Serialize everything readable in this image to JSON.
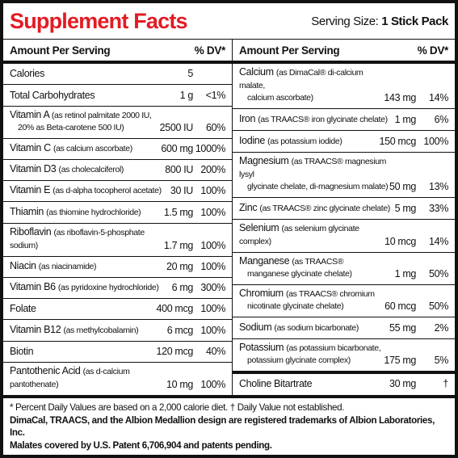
{
  "header": {
    "title": "Supplement Facts",
    "serving_size_label": "Serving Size:",
    "serving_size_value": "1 Stick Pack"
  },
  "columns": {
    "left": {
      "amount_header": "Amount Per Serving",
      "dv_header": "% DV*",
      "rows": [
        {
          "name": "Calories",
          "amount": "5"
        },
        {
          "name": "Total Carbohydrates",
          "amount": "1 g",
          "dv": "<1%"
        },
        {
          "name": "Vitamin A",
          "detail": [
            "(as retinol palmitate 2000 IU,",
            "20% as Beta-carotene 500 IU)"
          ],
          "amount": "2500 IU",
          "dv": "60%"
        },
        {
          "name": "Vitamin C",
          "detail": [
            "(as calcium ascorbate)"
          ],
          "amount": "600 mg",
          "dv": "1000%"
        },
        {
          "name": "Vitamin D3",
          "detail": [
            "(as cholecalciferol)"
          ],
          "amount": "800 IU",
          "dv": "200%"
        },
        {
          "name": "Vitamin E",
          "detail": [
            "(as d-alpha tocopherol acetate)"
          ],
          "amount": "30 IU",
          "dv": "100%"
        },
        {
          "name": "Thiamin",
          "detail": [
            "(as thiomine hydrochloride)"
          ],
          "amount": "1.5 mg",
          "dv": "100%"
        },
        {
          "name": "Riboflavin",
          "detail": [
            "(as riboflavin-5-phosphate sodium)"
          ],
          "amount": "1.7 mg",
          "dv": "100%"
        },
        {
          "name": "Niacin",
          "detail": [
            "(as niacinamide)"
          ],
          "amount": "20 mg",
          "dv": "100%"
        },
        {
          "name": "Vitamin B6",
          "detail": [
            "(as pyridoxine hydrochloride)"
          ],
          "amount": "6 mg",
          "dv": "300%"
        },
        {
          "name": "Folate",
          "amount": "400 mcg",
          "dv": "100%"
        },
        {
          "name": "Vitamin B12",
          "detail": [
            "(as methylcobalamin)"
          ],
          "amount": "6 mcg",
          "dv": "100%"
        },
        {
          "name": "Biotin",
          "amount": "120 mcg",
          "dv": "40%"
        },
        {
          "name": "Pantothenic Acid",
          "detail": [
            "(as d-calcium pantothenate)"
          ],
          "amount": "10 mg",
          "dv": "100%"
        }
      ]
    },
    "right": {
      "amount_header": "Amount Per Serving",
      "dv_header": "% DV*",
      "rows": [
        {
          "name": "Calcium",
          "detail": [
            "(as DimaCal® di-calcium malate,",
            "calcium ascorbate)"
          ],
          "amount": "143 mg",
          "dv": "14%"
        },
        {
          "name": "Iron",
          "detail": [
            "(as TRAACS® iron glycinate chelate)"
          ],
          "amount": "1 mg",
          "dv": "6%"
        },
        {
          "name": "Iodine",
          "detail": [
            "(as potassium iodide)"
          ],
          "amount": "150 mcg",
          "dv": "100%"
        },
        {
          "name": "Magnesium",
          "detail": [
            "(as TRAACS® magnesium lysyl",
            "glycinate chelate, di-magnesium malate)"
          ],
          "amount": "50 mg",
          "dv": "13%"
        },
        {
          "name": "Zinc",
          "detail": [
            "(as TRAACS® zinc glycinate chelate)"
          ],
          "amount": "5 mg",
          "dv": "33%"
        },
        {
          "name": "Selenium",
          "detail": [
            "(as selenium glycinate complex)"
          ],
          "amount": "10 mcg",
          "dv": "14%"
        },
        {
          "name": "Manganese",
          "detail": [
            "(as TRAACS®",
            "manganese glycinate chelate)"
          ],
          "amount": "1 mg",
          "dv": "50%"
        },
        {
          "name": "Chromium",
          "detail": [
            "(as TRAACS® chromium",
            "nicotinate glycinate chelate)"
          ],
          "amount": "60 mcg",
          "dv": "50%"
        },
        {
          "name": "Sodium",
          "detail": [
            "(as sodium bicarbonate)"
          ],
          "amount": "55 mg",
          "dv": "2%"
        },
        {
          "name": "Potassium",
          "detail": [
            "(as potassium bicarbonate,",
            "potassium glycinate complex)"
          ],
          "amount": "175 mg",
          "dv": "5%"
        }
      ],
      "footer_row": {
        "name": "Choline Bitartrate",
        "amount": "30 mg",
        "dv": "†"
      }
    }
  },
  "footnotes": [
    "* Percent Daily Values are based on a 2,000 calorie diet.  † Daily Value not established.",
    "DimaCal, TRAACS, and the Albion Medallion design are registered trademarks of Albion Laboratories, Inc.",
    "Malates covered by U.S. Patent 6,706,904 and patents pending."
  ]
}
